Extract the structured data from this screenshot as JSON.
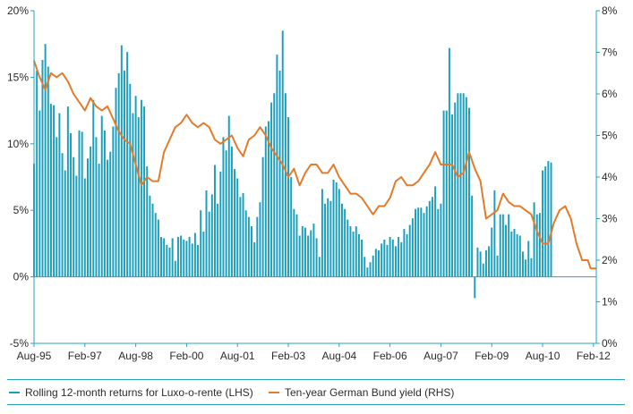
{
  "colors": {
    "bars": "#1a9fbd",
    "line": "#e37b2a",
    "axis": "#2aa3bf",
    "text": "#2b2b2b"
  },
  "chart_data": {
    "type": "bar+line",
    "x_tick_labels": [
      "Aug-95",
      "Feb-97",
      "Aug-98",
      "Feb-00",
      "Aug-01",
      "Feb-03",
      "Aug-04",
      "Feb-06",
      "Aug-07",
      "Feb-09",
      "Aug-10",
      "Feb-12"
    ],
    "y_left_ticks": [
      "20%",
      "15%",
      "10%",
      "5%",
      "0%",
      "-5%"
    ],
    "y_right_ticks": [
      "8%",
      "7%",
      "6%",
      "5%",
      "4%",
      "3%",
      "2%",
      "1%",
      "0%"
    ],
    "y_left_range": [
      -5,
      20
    ],
    "y_right_range": [
      0,
      8
    ],
    "x_range": [
      "1995-08",
      "2012-03"
    ],
    "grid": false,
    "legend_position": "bottom",
    "series": [
      {
        "name": "Rolling 12-month returns for Luxo-o-rente (LHS)",
        "type": "bar",
        "axis": "left",
        "start": "1995-08",
        "frequency": "monthly",
        "values": [
          8.5,
          15.5,
          12.5,
          16.3,
          17.5,
          15.8,
          13.0,
          12.9,
          10.5,
          12.3,
          9.3,
          8.0,
          12.8,
          10.8,
          9.0,
          7.6,
          11.0,
          10.9,
          7.4,
          8.9,
          9.8,
          13.3,
          10.5,
          8.5,
          12.1,
          11.0,
          8.8,
          9.4,
          11.3,
          14.2,
          15.3,
          17.4,
          15.5,
          16.9,
          14.5,
          12.3,
          13.6,
          12.0,
          13.3,
          12.8,
          8.3,
          6.1,
          5.5,
          4.8,
          4.3,
          3.0,
          2.9,
          2.4,
          2.2,
          2.9,
          1.2,
          3.0,
          3.1,
          2.8,
          2.7,
          3.0,
          2.5,
          3.3,
          2.4,
          5.0,
          3.4,
          6.5,
          4.9,
          6.2,
          8.4,
          5.5,
          7.9,
          10.5,
          9.5,
          12.1,
          9.8,
          8.1,
          7.4,
          6.0,
          6.3,
          5.0,
          4.5,
          3.8,
          2.6,
          4.5,
          5.6,
          9.0,
          11.3,
          11.7,
          13.1,
          13.8,
          16.7,
          15.5,
          18.5,
          13.8,
          12.0,
          7.5,
          5.1,
          4.7,
          3.1,
          3.8,
          3.7,
          3.1,
          3.5,
          4.0,
          2.9,
          1.5,
          6.6,
          5.5,
          5.9,
          5.7,
          7.3,
          7.1,
          6.6,
          5.5,
          5.1,
          4.3,
          3.8,
          3.4,
          3.8,
          3.2,
          2.8,
          1.5,
          0.7,
          1.1,
          1.6,
          2.1,
          2.0,
          2.5,
          2.8,
          2.4,
          3.0,
          2.8,
          2.3,
          3.0,
          2.6,
          3.6,
          3.2,
          3.9,
          4.4,
          5.1,
          5.2,
          5.2,
          4.8,
          5.3,
          5.7,
          6.0,
          6.8,
          5.1,
          5.5,
          12.5,
          12.5,
          17.2,
          12.2,
          13.1,
          13.8,
          13.8,
          13.8,
          13.5,
          12.7,
          6.1,
          -1.6,
          2.2,
          1.9,
          1.0,
          2.0,
          2.3,
          3.7,
          6.5,
          1.6,
          4.7,
          4.7,
          3.9,
          4.7,
          3.4,
          3.6,
          3.2,
          3.1,
          1.9,
          1.3,
          2.7,
          1.4,
          5.6,
          4.7,
          4.8,
          8.0,
          8.3,
          8.7,
          8.6
        ]
      },
      {
        "name": "Ten-year German Bund yield (RHS)",
        "type": "line",
        "axis": "right",
        "points": [
          [
            "1995-08",
            6.8
          ],
          [
            "1995-10",
            6.4
          ],
          [
            "1995-12",
            6.1
          ],
          [
            "1996-02",
            6.5
          ],
          [
            "1996-04",
            6.4
          ],
          [
            "1996-06",
            6.5
          ],
          [
            "1996-08",
            6.3
          ],
          [
            "1996-10",
            6.0
          ],
          [
            "1996-12",
            5.8
          ],
          [
            "1997-02",
            5.6
          ],
          [
            "1997-04",
            5.9
          ],
          [
            "1997-06",
            5.7
          ],
          [
            "1997-08",
            5.6
          ],
          [
            "1997-10",
            5.7
          ],
          [
            "1997-12",
            5.4
          ],
          [
            "1998-02",
            5.1
          ],
          [
            "1998-04",
            4.9
          ],
          [
            "1998-06",
            4.8
          ],
          [
            "1998-08",
            4.3
          ],
          [
            "1998-10",
            3.8
          ],
          [
            "1998-12",
            4.0
          ],
          [
            "1999-02",
            3.9
          ],
          [
            "1999-04",
            3.9
          ],
          [
            "1999-06",
            4.6
          ],
          [
            "1999-08",
            4.9
          ],
          [
            "1999-10",
            5.2
          ],
          [
            "1999-12",
            5.3
          ],
          [
            "2000-02",
            5.5
          ],
          [
            "2000-04",
            5.3
          ],
          [
            "2000-06",
            5.2
          ],
          [
            "2000-08",
            5.3
          ],
          [
            "2000-10",
            5.2
          ],
          [
            "2000-12",
            4.9
          ],
          [
            "2001-02",
            4.8
          ],
          [
            "2001-04",
            4.9
          ],
          [
            "2001-06",
            5.0
          ],
          [
            "2001-08",
            4.7
          ],
          [
            "2001-10",
            4.5
          ],
          [
            "2001-12",
            4.9
          ],
          [
            "2002-02",
            5.0
          ],
          [
            "2002-04",
            5.2
          ],
          [
            "2002-06",
            5.0
          ],
          [
            "2002-08",
            4.7
          ],
          [
            "2002-10",
            4.5
          ],
          [
            "2002-12",
            4.3
          ],
          [
            "2003-02",
            4.0
          ],
          [
            "2003-04",
            4.2
          ],
          [
            "2003-06",
            3.8
          ],
          [
            "2003-08",
            4.1
          ],
          [
            "2003-10",
            4.3
          ],
          [
            "2003-12",
            4.3
          ],
          [
            "2004-02",
            4.1
          ],
          [
            "2004-04",
            4.1
          ],
          [
            "2004-06",
            4.3
          ],
          [
            "2004-08",
            4.0
          ],
          [
            "2004-10",
            3.8
          ],
          [
            "2004-12",
            3.6
          ],
          [
            "2005-02",
            3.6
          ],
          [
            "2005-04",
            3.5
          ],
          [
            "2005-06",
            3.3
          ],
          [
            "2005-08",
            3.1
          ],
          [
            "2005-10",
            3.3
          ],
          [
            "2005-12",
            3.3
          ],
          [
            "2006-02",
            3.5
          ],
          [
            "2006-04",
            3.9
          ],
          [
            "2006-06",
            4.0
          ],
          [
            "2006-08",
            3.8
          ],
          [
            "2006-10",
            3.8
          ],
          [
            "2006-12",
            3.9
          ],
          [
            "2007-02",
            4.1
          ],
          [
            "2007-04",
            4.3
          ],
          [
            "2007-06",
            4.6
          ],
          [
            "2007-08",
            4.3
          ],
          [
            "2007-10",
            4.3
          ],
          [
            "2007-12",
            4.3
          ],
          [
            "2008-02",
            4.0
          ],
          [
            "2008-04",
            4.1
          ],
          [
            "2008-06",
            4.6
          ],
          [
            "2008-08",
            4.2
          ],
          [
            "2008-10",
            3.9
          ],
          [
            "2008-12",
            3.0
          ],
          [
            "2009-02",
            3.1
          ],
          [
            "2009-04",
            3.2
          ],
          [
            "2009-06",
            3.6
          ],
          [
            "2009-08",
            3.4
          ],
          [
            "2009-10",
            3.3
          ],
          [
            "2009-12",
            3.3
          ],
          [
            "2010-02",
            3.2
          ],
          [
            "2010-04",
            3.1
          ],
          [
            "2010-06",
            2.7
          ],
          [
            "2010-08",
            2.4
          ],
          [
            "2010-10",
            2.4
          ],
          [
            "2010-12",
            2.9
          ],
          [
            "2011-02",
            3.2
          ],
          [
            "2011-04",
            3.3
          ],
          [
            "2011-06",
            3.0
          ],
          [
            "2011-08",
            2.4
          ],
          [
            "2011-10",
            2.0
          ],
          [
            "2011-12",
            2.0
          ],
          [
            "2012-01",
            1.8
          ],
          [
            "2012-03",
            1.8
          ]
        ]
      }
    ]
  }
}
